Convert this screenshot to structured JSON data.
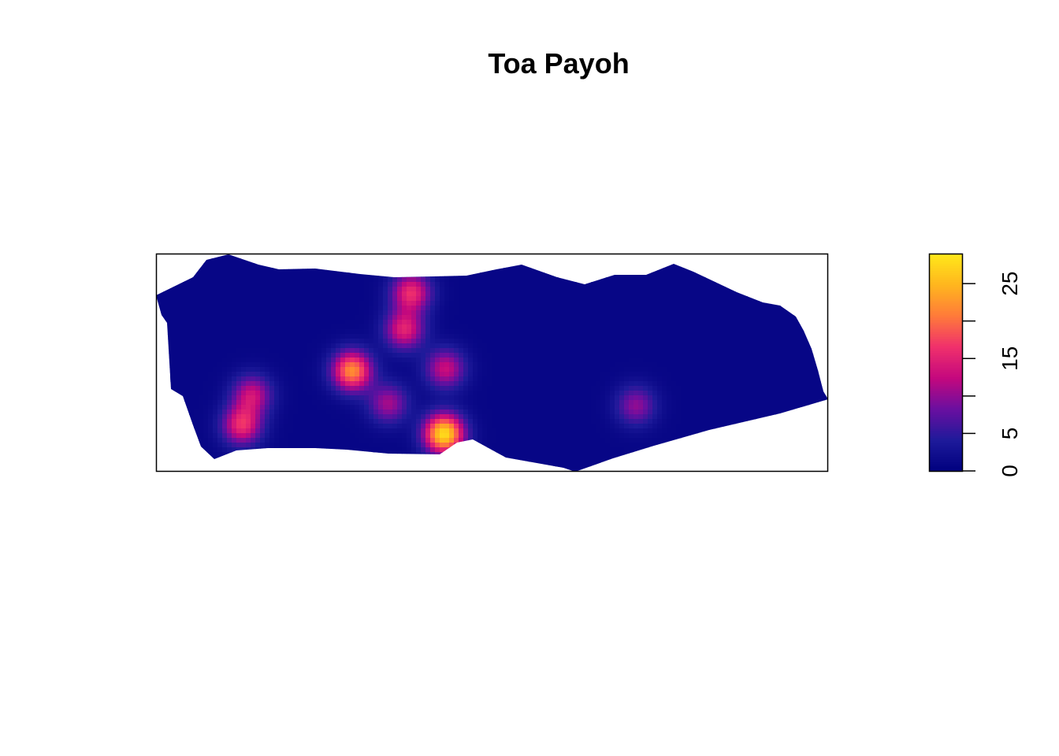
{
  "chart_data": {
    "type": "heatmap",
    "title": "Toa Payoh",
    "xlabel": "",
    "ylabel": "",
    "grid": false,
    "colorbar": {
      "placement": "right",
      "range": [
        0,
        29
      ],
      "ticks": [
        0,
        5,
        10,
        15,
        20,
        25
      ],
      "tick_labels": [
        "0",
        "5",
        "",
        "15",
        "",
        "25"
      ],
      "colors": [
        "#00007F",
        "#1E1A9A",
        "#6A0FA0",
        "#C4087E",
        "#F0306C",
        "#FF7A3A",
        "#FFB61E",
        "#FFE81A"
      ]
    },
    "hotspots": [
      {
        "x": 0.38,
        "y": 0.82,
        "value": 16
      },
      {
        "x": 0.37,
        "y": 0.65,
        "value": 15
      },
      {
        "x": 0.292,
        "y": 0.46,
        "value": 22
      },
      {
        "x": 0.346,
        "y": 0.31,
        "value": 11
      },
      {
        "x": 0.431,
        "y": 0.47,
        "value": 13
      },
      {
        "x": 0.429,
        "y": 0.17,
        "value": 28
      },
      {
        "x": 0.143,
        "y": 0.35,
        "value": 13
      },
      {
        "x": 0.128,
        "y": 0.21,
        "value": 16
      },
      {
        "x": 0.715,
        "y": 0.3,
        "value": 10
      }
    ],
    "background_value": 1,
    "colors": {
      "frame": "#000000",
      "background": "#ffffff"
    }
  }
}
